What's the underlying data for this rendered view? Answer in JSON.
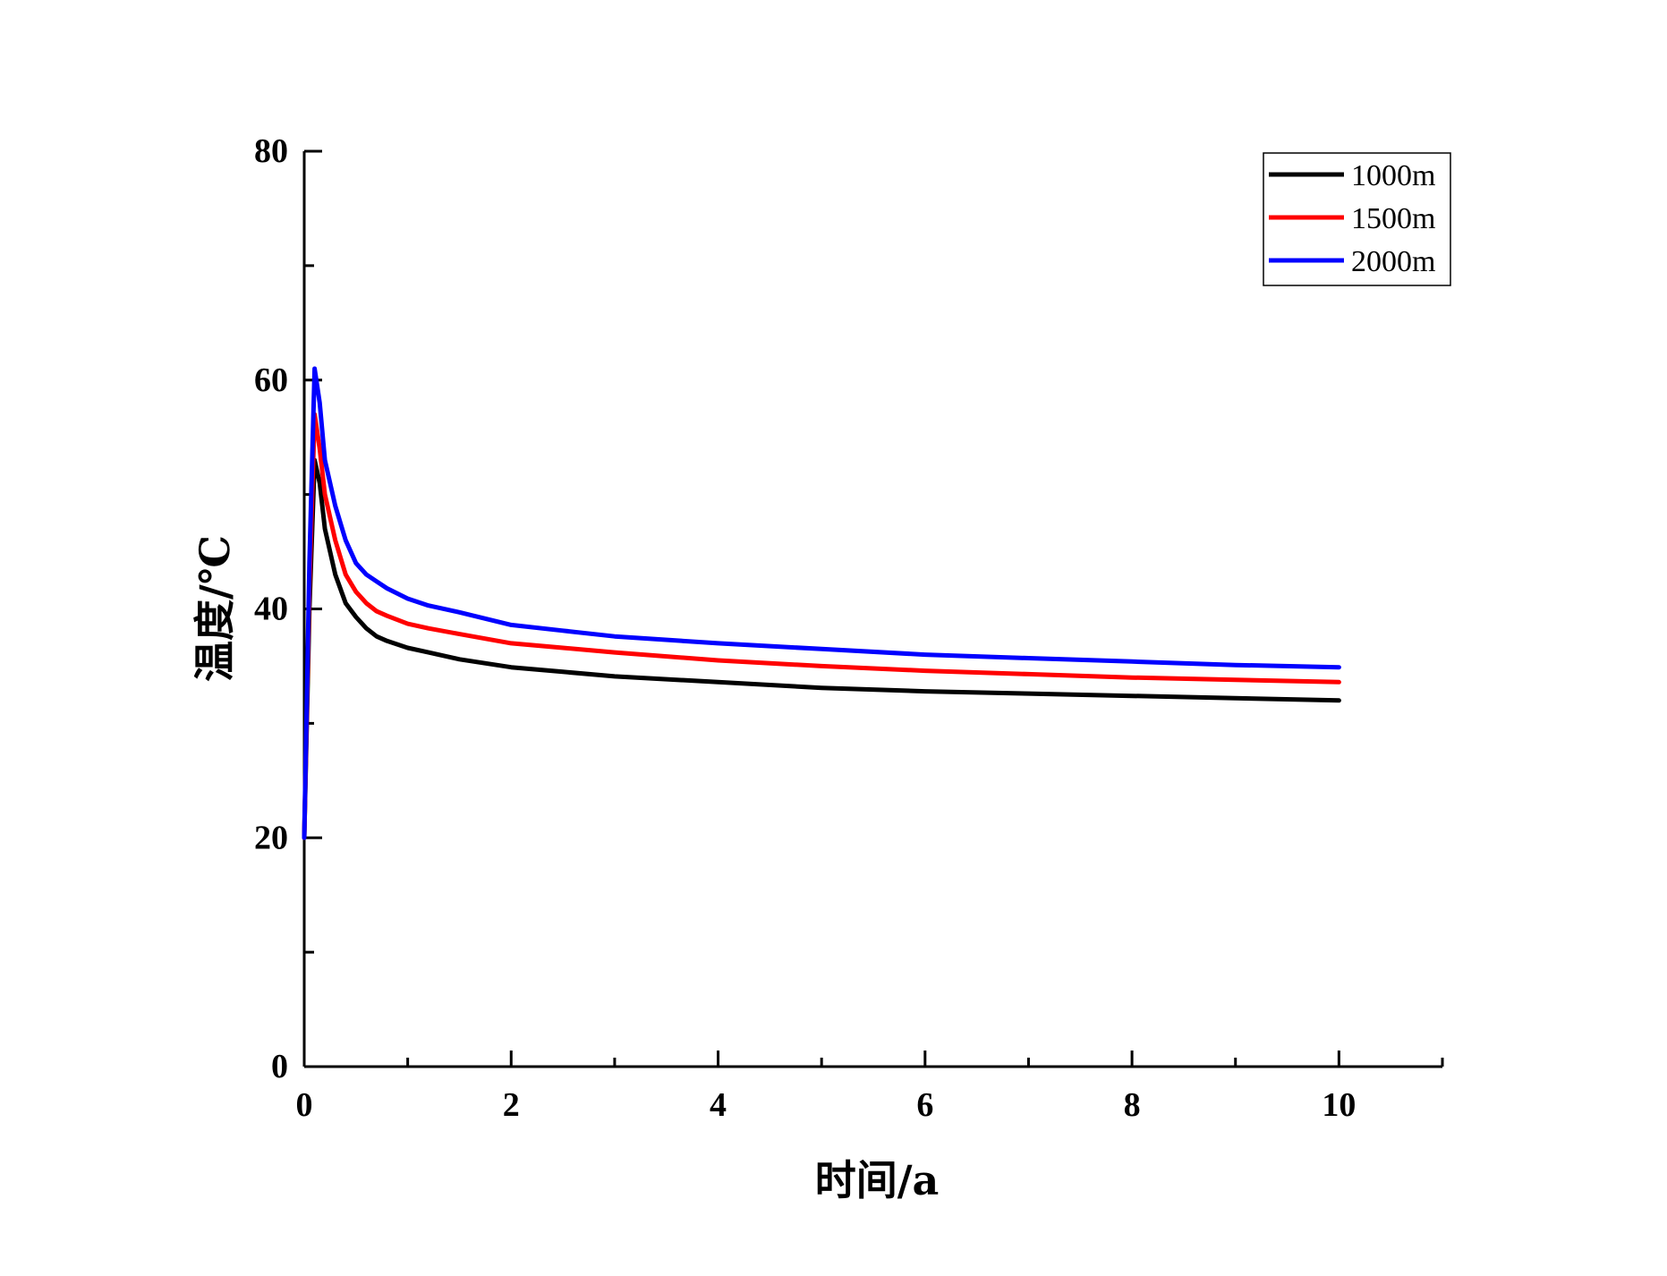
{
  "chart_data": {
    "type": "line",
    "title": "",
    "xlabel": "时间/a",
    "ylabel": "温度/℃",
    "xlim": [
      0,
      11
    ],
    "ylim": [
      0,
      80
    ],
    "x_ticks": [
      0,
      2,
      4,
      6,
      8,
      10
    ],
    "x_tick_labels": [
      "0",
      "2",
      "4",
      "6",
      "8",
      "10"
    ],
    "y_ticks": [
      0,
      20,
      40,
      60,
      80
    ],
    "y_tick_labels": [
      "0",
      "20",
      "40",
      "60",
      "80"
    ],
    "x_minor_ticks": [
      1,
      3,
      5,
      7,
      9,
      11
    ],
    "y_minor_ticks": [
      10,
      30,
      50,
      70
    ],
    "grid": false,
    "legend_position": "top-right",
    "series": [
      {
        "name": "1000m",
        "color": "#000000",
        "x": [
          0,
          0.05,
          0.1,
          0.15,
          0.2,
          0.3,
          0.4,
          0.5,
          0.6,
          0.7,
          0.8,
          1.0,
          1.2,
          1.5,
          2.0,
          2.5,
          3.0,
          4.0,
          5.0,
          6.0,
          7.0,
          8.0,
          9.0,
          10.0
        ],
        "y": [
          20,
          40,
          53,
          51,
          47,
          43,
          40.5,
          39.3,
          38.3,
          37.6,
          37.2,
          36.6,
          36.2,
          35.6,
          34.9,
          34.5,
          34.1,
          33.6,
          33.1,
          32.8,
          32.6,
          32.4,
          32.2,
          32.0
        ]
      },
      {
        "name": "1500m",
        "color": "#ff0000",
        "x": [
          0,
          0.05,
          0.1,
          0.15,
          0.2,
          0.3,
          0.4,
          0.5,
          0.6,
          0.7,
          0.8,
          1.0,
          1.2,
          1.5,
          2.0,
          2.5,
          3.0,
          4.0,
          5.0,
          6.0,
          7.0,
          8.0,
          9.0,
          10.0
        ],
        "y": [
          20,
          42,
          57,
          54,
          50,
          46,
          43,
          41.5,
          40.5,
          39.8,
          39.4,
          38.7,
          38.3,
          37.8,
          37.0,
          36.6,
          36.2,
          35.5,
          35.0,
          34.6,
          34.3,
          34.0,
          33.8,
          33.6
        ]
      },
      {
        "name": "2000m",
        "color": "#0000ff",
        "x": [
          0,
          0.05,
          0.1,
          0.15,
          0.2,
          0.3,
          0.4,
          0.5,
          0.6,
          0.7,
          0.8,
          1.0,
          1.2,
          1.5,
          2.0,
          2.5,
          3.0,
          4.0,
          5.0,
          6.0,
          7.0,
          8.0,
          9.0,
          10.0
        ],
        "y": [
          20,
          44,
          61,
          58,
          53,
          49,
          46,
          44,
          43,
          42.4,
          41.8,
          40.9,
          40.3,
          39.7,
          38.6,
          38.1,
          37.6,
          37.0,
          36.5,
          36.0,
          35.7,
          35.4,
          35.1,
          34.9
        ]
      }
    ]
  }
}
